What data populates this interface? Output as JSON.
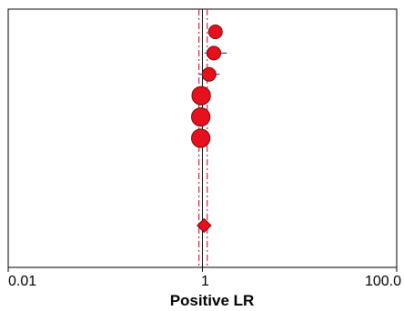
{
  "chart_data": {
    "type": "scatter",
    "xlabel": "Positive LR",
    "x_scale": "log",
    "xlim": [
      0.01,
      100.0
    ],
    "x_ticks": [
      {
        "value": 0.01,
        "label": "0.01"
      },
      {
        "value": 1,
        "label": "1"
      },
      {
        "value": 100.0,
        "label": "100.0"
      }
    ],
    "grid": false,
    "null_line": 1,
    "pooled_ci_lines": [
      0.92,
      1.12
    ],
    "studies": [
      {
        "lr": 1.36,
        "ci_low": 1.36,
        "ci_high": 1.36,
        "weight": 1.0
      },
      {
        "lr": 1.31,
        "ci_low": 1.05,
        "ci_high": 1.78,
        "weight": 1.0
      },
      {
        "lr": 1.17,
        "ci_low": 0.91,
        "ci_high": 1.5,
        "weight": 1.0
      },
      {
        "lr": 0.97,
        "ci_low": 0.88,
        "ci_high": 1.05,
        "weight": 1.35
      },
      {
        "lr": 0.96,
        "ci_low": 0.87,
        "ci_high": 1.06,
        "weight": 1.35
      },
      {
        "lr": 0.96,
        "ci_low": 0.87,
        "ci_high": 1.06,
        "weight": 1.35
      }
    ],
    "pooled": {
      "lr": 1.04
    },
    "colors": {
      "marker": "#e8101c",
      "marker_outline": "#6e0a0a",
      "ci_line": "#1a1a9c",
      "pooled_ci_line": "#c0002a",
      "pooled_dash": "#8a2a6a",
      "axis": "#000000"
    }
  }
}
